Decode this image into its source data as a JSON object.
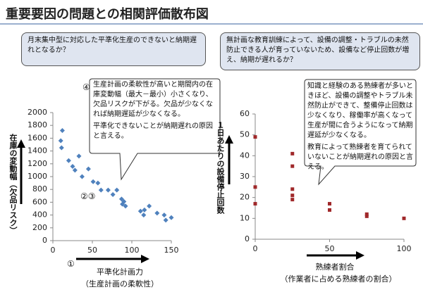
{
  "title": "重要要因の問題との相関評価散布図",
  "chart_data": [
    {
      "type": "scatter",
      "question": "月末集中型に対応した平準化生産のできないと納期遅れとなるか？",
      "callout": [
        "生産計画の柔軟性が高いと期間内の在庫変動幅（最大－最小）小さくなり、欠品リスクが下がる。欠品が少なくなれば納期遅延が少なくなる。",
        "平準化できないことが納期遅れの原因と言える。"
      ],
      "ylabel": "在庫の変動幅（欠品リスク）",
      "xlabel": "平準化計画力",
      "xlabel_sub": "（生産計画の柔軟性）",
      "annotations": [
        "④",
        "②③",
        "①"
      ],
      "color": "#4f81bd",
      "marker": "diamond",
      "x": [
        12,
        10,
        11,
        20,
        25,
        33,
        28,
        37,
        45,
        51,
        57,
        61,
        70,
        81,
        76,
        87,
        90,
        92,
        88,
        111,
        115,
        116,
        122,
        132,
        141,
        143,
        150
      ],
      "values": [
        1720,
        1560,
        1450,
        1250,
        1160,
        1320,
        1100,
        1000,
        1120,
        920,
        900,
        790,
        790,
        790,
        720,
        650,
        610,
        540,
        570,
        460,
        400,
        480,
        540,
        430,
        400,
        320,
        360
      ],
      "xlim": [
        0,
        150
      ],
      "xticks": [
        0,
        50,
        100,
        150
      ],
      "ylim": [
        0,
        2000
      ],
      "yticks": [
        0,
        200,
        400,
        600,
        800,
        1000,
        1200,
        1400,
        1600,
        1800,
        2000
      ]
    },
    {
      "type": "scatter",
      "question": "無計画な教育訓練によって、設備の調整・トラブルの未然防止できる人が育っていないため、設備など停止回数が増え、納期が遅れるか？",
      "callout": [
        "知識と経験のある熟練者が多いときほど、設備の調整やトラブル未然防止ができて、整備停止回数は少なくなり、稼働率が高くなって生産が間に合うようになって納期遅延が少なくなる。",
        "教育によって熟練者を育てられていないことが納期遅れの原因と言える。"
      ],
      "ylabel": "１日あたりの設備停止回数",
      "xlabel": "熟練者割合",
      "xlabel_sub": "（作業者に占める熟練者の割合）",
      "color": "#a0282a",
      "marker": "square",
      "x": [
        0,
        0,
        0,
        25,
        25,
        25,
        25,
        25,
        50,
        50,
        75,
        75,
        100
      ],
      "values": [
        49,
        25,
        17,
        41,
        35,
        24,
        21,
        19,
        17,
        14,
        12,
        11,
        10
      ],
      "xlim": [
        0,
        100
      ],
      "xticks": [
        0,
        50,
        100
      ],
      "ylim": [
        0,
        60
      ],
      "yticks": [
        0,
        10,
        20,
        30,
        40,
        50,
        60
      ]
    }
  ]
}
